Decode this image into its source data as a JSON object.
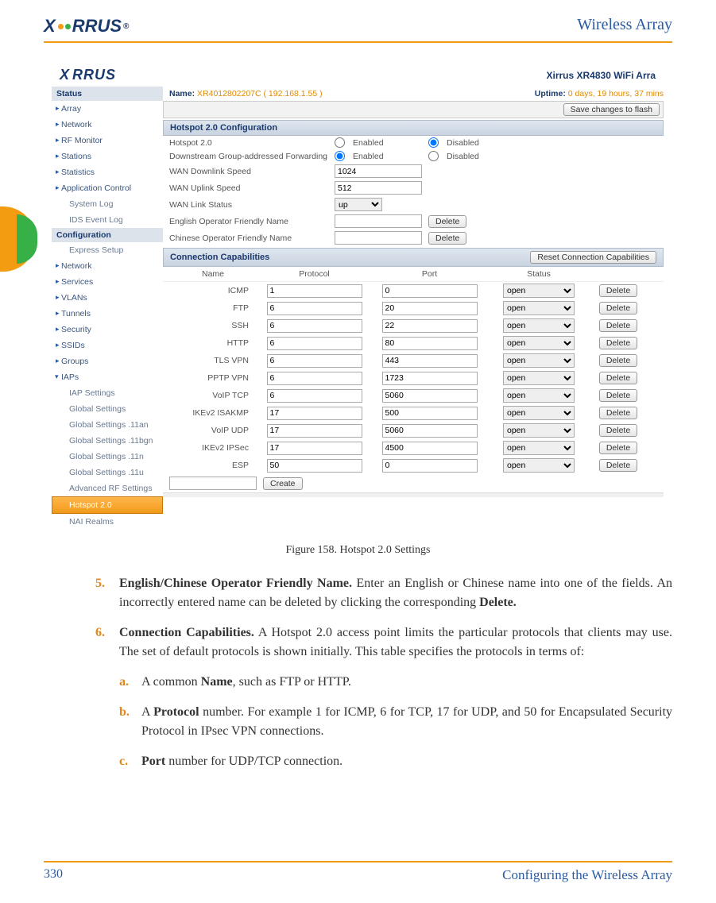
{
  "header": {
    "brand": "XIRRUS",
    "doc_title": "Wireless Array"
  },
  "colors": {
    "accent": "#f39c12",
    "link": "#2a5aa0",
    "brand": "#1a3a6e",
    "highlight_num": "#e0861a",
    "tab_green": "#37b048"
  },
  "screenshot": {
    "brand": "XIRRUS",
    "product": "Xirrus XR4830 WiFi Arra",
    "name_label": "Name:",
    "name_value": "XR4012802207C   ( 192.168.1.55 )",
    "uptime_label": "Uptime:",
    "uptime_value": "0 days, 19 hours, 37 mins",
    "save_btn": "Save changes to flash",
    "sidebar": {
      "status_head": "Status",
      "status_items": [
        "Array",
        "Network",
        "RF Monitor",
        "Stations",
        "Statistics",
        "Application Control"
      ],
      "status_subs": [
        "System Log",
        "IDS Event Log"
      ],
      "config_head": "Configuration",
      "config_items": [
        "Express Setup",
        "Network",
        "Services",
        "VLANs",
        "Tunnels",
        "Security",
        "SSIDs",
        "Groups"
      ],
      "iaps_label": "IAPs",
      "iaps_subs": [
        "IAP Settings",
        "Global Settings",
        "Global Settings .11an",
        "Global Settings .11bgn",
        "Global Settings .11n",
        "Global Settings .11u",
        "Advanced RF Settings",
        "Hotspot 2.0",
        "NAI Realms"
      ]
    },
    "section1_title": "Hotspot 2.0 Configuration",
    "form": {
      "hotspot_label": "Hotspot 2.0",
      "enabled": "Enabled",
      "disabled": "Disabled",
      "dgaf_label": "Downstream Group-addressed Forwarding",
      "wan_down_label": "WAN Downlink Speed",
      "wan_down_val": "1024",
      "wan_up_label": "WAN Uplink Speed",
      "wan_up_val": "512",
      "wan_link_label": "WAN Link Status",
      "wan_link_val": "up",
      "eng_name_label": "English Operator Friendly Name",
      "chi_name_label": "Chinese Operator Friendly Name",
      "delete_btn": "Delete"
    },
    "section2_title": "Connection Capabilities",
    "reset_btn": "Reset Connection Capabilities",
    "cols": {
      "name": "Name",
      "protocol": "Protocol",
      "port": "Port",
      "status": "Status"
    },
    "rows": [
      {
        "name": "ICMP",
        "proto": "1",
        "port": "0",
        "status": "open"
      },
      {
        "name": "FTP",
        "proto": "6",
        "port": "20",
        "status": "open"
      },
      {
        "name": "SSH",
        "proto": "6",
        "port": "22",
        "status": "open"
      },
      {
        "name": "HTTP",
        "proto": "6",
        "port": "80",
        "status": "open"
      },
      {
        "name": "TLS VPN",
        "proto": "6",
        "port": "443",
        "status": "open"
      },
      {
        "name": "PPTP VPN",
        "proto": "6",
        "port": "1723",
        "status": "open"
      },
      {
        "name": "VoIP TCP",
        "proto": "6",
        "port": "5060",
        "status": "open"
      },
      {
        "name": "IKEv2 ISAKMP",
        "proto": "17",
        "port": "500",
        "status": "open"
      },
      {
        "name": "VoIP UDP",
        "proto": "17",
        "port": "5060",
        "status": "open"
      },
      {
        "name": "IKEv2 IPSec",
        "proto": "17",
        "port": "4500",
        "status": "open"
      },
      {
        "name": "ESP",
        "proto": "50",
        "port": "0",
        "status": "open"
      }
    ],
    "delete_btn": "Delete",
    "create_btn": "Create"
  },
  "figure_caption": "Figure 158. Hotspot 2.0 Settings",
  "body": {
    "item5_num": "5.",
    "item5_bold": "English/Chinese Operator Friendly Name.",
    "item5_rest": " Enter an English or Chinese name into one of the fields. An incorrectly entered name can be deleted by clicking the corresponding ",
    "item5_bold2": "Delete.",
    "item6_num": "6.",
    "item6_bold": "Connection Capabilities.",
    "item6_rest": " A Hotspot 2.0 access point limits the particular protocols that clients may use. The set of default protocols is shown initially. This table specifies the protocols in terms of:",
    "sub_a_num": "a.",
    "sub_a_pre": "A common ",
    "sub_a_bold": "Name",
    "sub_a_post": ", such as FTP or HTTP.",
    "sub_b_num": "b.",
    "sub_b_pre": "A ",
    "sub_b_bold": "Protocol",
    "sub_b_post": " number. For example 1 for ICMP, 6 for TCP, 17 for UDP, and 50 for Encapsulated Security Protocol in IPsec VPN connections.",
    "sub_c_num": "c.",
    "sub_c_bold": "Port",
    "sub_c_post": " number for UDP/TCP connection."
  },
  "footer": {
    "page": "330",
    "title": "Configuring the Wireless Array"
  }
}
